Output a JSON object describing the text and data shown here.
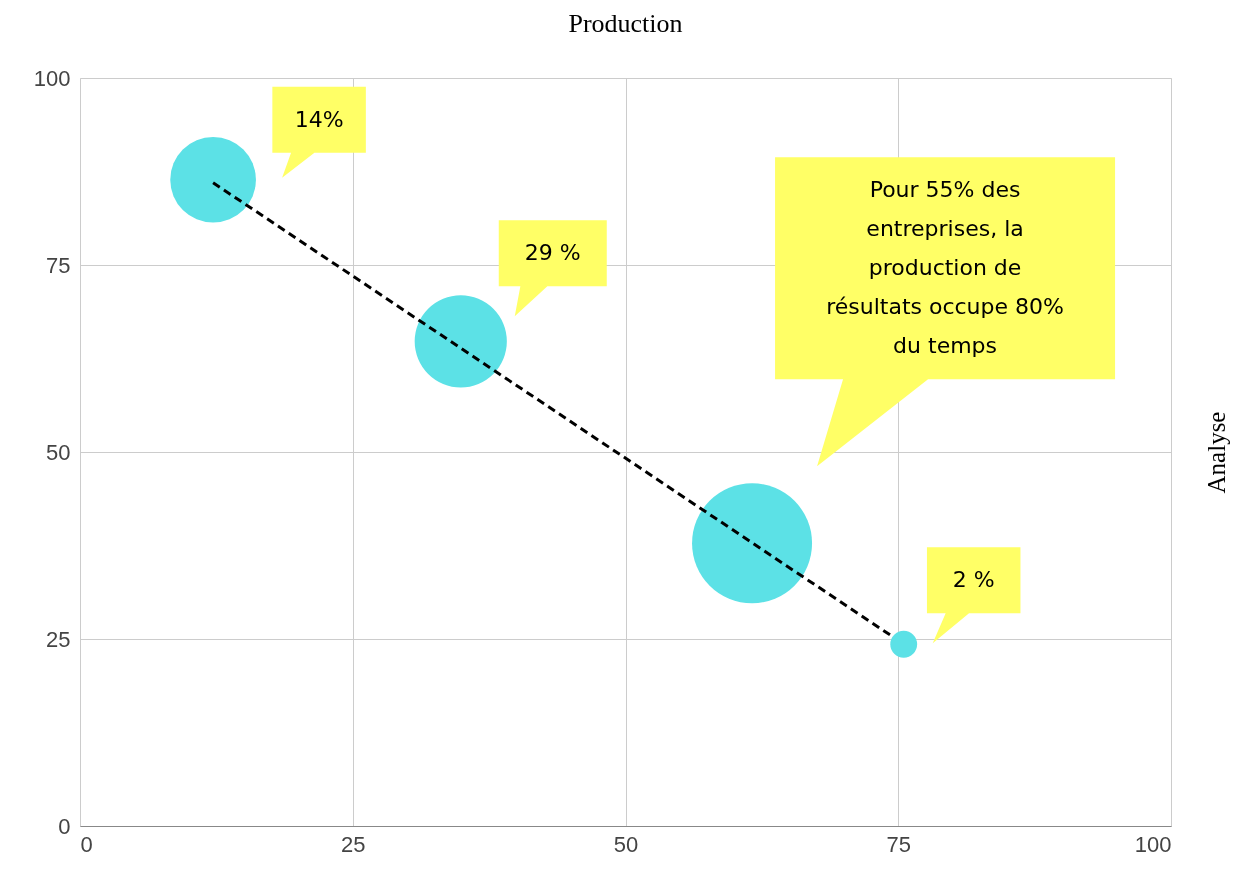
{
  "chart_data": {
    "type": "bubble",
    "title": "Production",
    "ylabel": "Analyse",
    "xlim": [
      0,
      100
    ],
    "ylim": [
      0,
      100
    ],
    "xticks": [
      0,
      25,
      50,
      75,
      100
    ],
    "yticks": [
      0,
      25,
      50,
      75,
      100
    ],
    "grid": true,
    "series": [
      {
        "type": "bubble",
        "color": "#5ce1e6",
        "x": [
          12.2,
          34.9,
          61.6,
          75.5
        ],
        "values": [
          86.4,
          64.8,
          37.8,
          24.3
        ],
        "sizes": [
          0.51,
          0.59,
          1,
          0.05
        ]
      },
      {
        "type": "line",
        "color": "#000000",
        "line_style": "dashed",
        "x": [
          12.2,
          74.5
        ],
        "values": [
          86,
          25.3
        ]
      }
    ],
    "annotations": [
      "14%",
      "29 %",
      "Pour 55% des entreprises, la production de résultats occupe 80% du temps",
      "2 %"
    ]
  }
}
